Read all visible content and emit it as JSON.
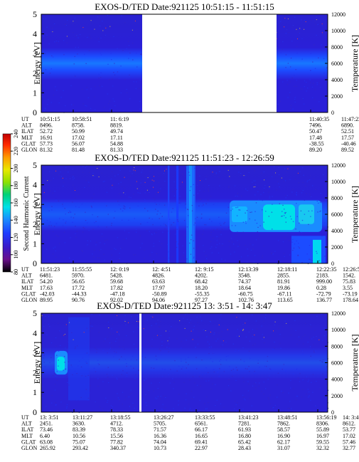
{
  "chart_data": [
    {
      "type": "heatmap",
      "title": "EXOS-D/TED  Date:921125  10:51:15 - 11:51:15",
      "ylabel": "Energy [eV]",
      "y2label": "Temperature [K]",
      "ylim": [
        0,
        5
      ],
      "y2lim": [
        0,
        12000
      ],
      "yticks": [
        "0",
        "1",
        "2",
        "3",
        "4",
        "5"
      ],
      "y2ticks": [
        "0",
        "2000",
        "4000",
        "6000",
        "8000",
        "10000",
        "12000"
      ],
      "data_gap": true,
      "band_center_ev": 2.5,
      "rows": [
        {
          "label": "UT",
          "values": [
            "10:51:15",
            "10:58:51",
            "11: 6:19",
            "11:40:35",
            "11:47:23"
          ]
        },
        {
          "label": "ALT",
          "values": [
            "8496.",
            "8758.",
            "8819.",
            "7496.",
            "6890."
          ]
        },
        {
          "label": "ILAT",
          "values": [
            "52.72",
            "50.99",
            "49.74",
            "50.47",
            "52.51"
          ]
        },
        {
          "label": "MLT",
          "values": [
            "16.91",
            "17.02",
            "17.11",
            "17.48",
            "17.57"
          ]
        },
        {
          "label": "GLAT",
          "values": [
            "57.73",
            "56.07",
            "54.88",
            "-38.55",
            "-40.46"
          ]
        },
        {
          "label": "GLON",
          "values": [
            "81.32",
            "81.48",
            "81.33",
            "89.20",
            "89.52"
          ]
        }
      ]
    },
    {
      "type": "heatmap",
      "title": "EXOS-D/TED  Date:921125  11:51:23 - 12:26:59",
      "ylabel": "Energy [eV]",
      "y2label": "Temperature [K]",
      "ylim": [
        0,
        5
      ],
      "y2lim": [
        0,
        12000
      ],
      "yticks": [
        "0",
        "1",
        "2",
        "3",
        "4",
        "5"
      ],
      "y2ticks": [
        "0",
        "2000",
        "4000",
        "6000",
        "8000",
        "10000",
        "12000"
      ],
      "colorbar": {
        "label": "Second Harmonic Current",
        "range": [
          80,
          240
        ],
        "ticks": [
          "80",
          "100",
          "120",
          "140",
          "160",
          "180",
          "200",
          "220",
          "240"
        ],
        "colors": [
          "#000000",
          "#6a0f8c",
          "#3a1ac8",
          "#1e3cff",
          "#1a8cff",
          "#00e0e8",
          "#00d27a",
          "#8ee000",
          "#e8e800",
          "#ff9a00",
          "#ff2a00",
          "#c00000"
        ]
      },
      "rows": [
        {
          "label": "UT",
          "values": [
            "11:51:23",
            "11:55:55",
            "12: 0:19",
            "12: 4:51",
            "12: 9:15",
            "12:13:39",
            "12:18:11",
            "12:22:35",
            "12:26:59"
          ]
        },
        {
          "label": "ALT",
          "values": [
            "6481.",
            "5970.",
            "5428.",
            "4826.",
            "4202.",
            "3548.",
            "2855.",
            "2183.",
            "1542."
          ]
        },
        {
          "label": "ILAT",
          "values": [
            "54.20",
            "56.65",
            "59.68",
            "63.63",
            "68.42",
            "74.37",
            "81.91",
            "999.00",
            "75.83"
          ]
        },
        {
          "label": "MLT",
          "values": [
            "17.63",
            "17.72",
            "17.82",
            "17.97",
            "18.20",
            "18.64",
            "19.86",
            "0.28",
            "3.55"
          ]
        },
        {
          "label": "GLAT",
          "values": [
            "-42.03",
            "-44.33",
            "-47.18",
            "-50.89",
            "-55.35",
            "-60.75",
            "-67.11",
            "-72.79",
            "-73.19"
          ]
        },
        {
          "label": "GLON",
          "values": [
            "89.95",
            "90.76",
            "92.02",
            "94.06",
            "97.27",
            "102.76",
            "113.65",
            "136.77",
            "178.64"
          ]
        }
      ]
    },
    {
      "type": "heatmap",
      "title": "EXOS-D/TED  Date:921125  13: 3:51 - 14: 3:47",
      "ylabel": "Energy [eV]",
      "y2label": "Temperature [K]",
      "ylim": [
        0,
        5
      ],
      "y2lim": [
        0,
        12000
      ],
      "yticks": [
        "0",
        "1",
        "2",
        "3",
        "4",
        "5"
      ],
      "y2ticks": [
        "0",
        "2000",
        "4000",
        "6000",
        "8000",
        "10000",
        "12000"
      ],
      "rows": [
        {
          "label": "UT",
          "values": [
            "13: 3:51",
            "13:11:27",
            "13:18:55",
            "13:26:27",
            "13:33:55",
            "13:41:23",
            "13:48:51",
            "13:56:19",
            "14: 3:47"
          ]
        },
        {
          "label": "ALT",
          "values": [
            "2451.",
            "3630.",
            "4712.",
            "5705.",
            "6561.",
            "7281.",
            "7862.",
            "8306.",
            "8612."
          ]
        },
        {
          "label": "ILAT",
          "values": [
            "73.46",
            "83.39",
            "78.33",
            "71.57",
            "66.17",
            "61.93",
            "58.57",
            "55.89",
            "53.77"
          ]
        },
        {
          "label": "MLT",
          "values": [
            "6.40",
            "10.56",
            "15.56",
            "16.36",
            "16.65",
            "16.80",
            "16.90",
            "16.97",
            "17.02"
          ]
        },
        {
          "label": "GLAT",
          "values": [
            "63.08",
            "75.07",
            "77.82",
            "74.04",
            "69.41",
            "65.42",
            "62.17",
            "59.55",
            "57.46"
          ]
        },
        {
          "label": "GLON",
          "values": [
            "265.92",
            "293.42",
            "340.37",
            "10.73",
            "22.97",
            "28.43",
            "31.07",
            "32.32",
            "32.77"
          ]
        }
      ]
    }
  ]
}
